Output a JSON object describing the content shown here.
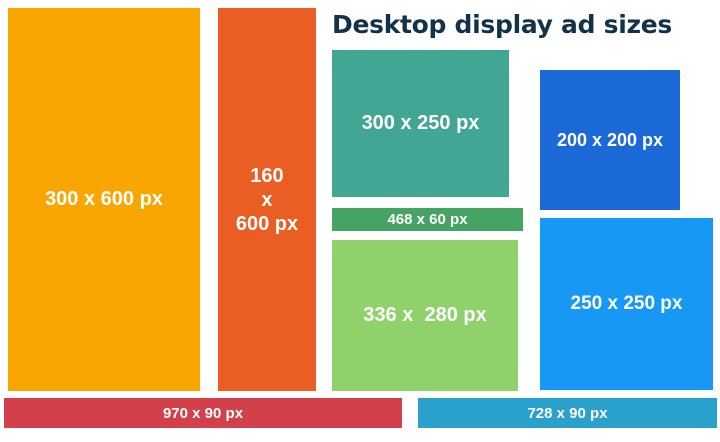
{
  "title": "Desktop display ad sizes",
  "ads": {
    "a300x600": {
      "label": "300 x 600 px",
      "color": "#f9a602"
    },
    "a160x600": {
      "line1": "160",
      "line2": "x",
      "line3": "600 px",
      "color": "#eb5e23"
    },
    "a300x250": {
      "label": "300 x 250 px",
      "color": "#41a694"
    },
    "a468x60": {
      "label": "468 x 60 px",
      "color": "#45a463"
    },
    "a336x280": {
      "label": "336 x  280 px",
      "color": "#8fd26c"
    },
    "a200x200": {
      "label": "200 x 200 px",
      "color": "#1b69d6"
    },
    "a250x250": {
      "label": "250 x 250 px",
      "color": "#1698f4"
    },
    "a970x90": {
      "label": "970 x 90 px",
      "color": "#d2414b"
    },
    "a728x90": {
      "label": "728 x 90 px",
      "color": "#2aa1cc"
    }
  }
}
